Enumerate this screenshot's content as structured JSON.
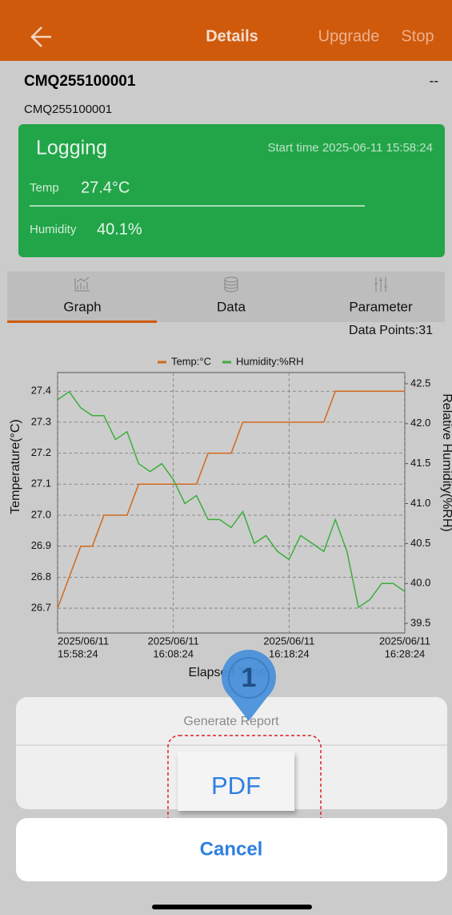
{
  "header": {
    "title": "Details",
    "actions": [
      "Upgrade",
      "Stop"
    ]
  },
  "device": {
    "name": "CMQ255100001",
    "status": "--",
    "id": "CMQ255100001"
  },
  "status_card": {
    "state": "Logging",
    "start_time": "Start time 2025-06-11 15:58:24",
    "readings": [
      {
        "label": "Temp",
        "value": "27.4°C"
      },
      {
        "label": "Humidity",
        "value": "40.1%"
      }
    ]
  },
  "tabs": [
    "Graph",
    "Data",
    "Parameter"
  ],
  "data_points": "Data Points:31",
  "chart_data": {
    "type": "line",
    "xlabel": "Elapsed Time",
    "ylabel": "Temperature(°C)",
    "y2label": "Relative Humidity(%RH)",
    "x": [
      0,
      1,
      2,
      3,
      4,
      5,
      6,
      7,
      8,
      9,
      10,
      11,
      12,
      13,
      14,
      15,
      16,
      17,
      18,
      19,
      20,
      21,
      22,
      23,
      24,
      25,
      26,
      27,
      28,
      29,
      30
    ],
    "xlim": [
      0,
      30
    ],
    "xticks": [
      {
        "value": 0,
        "label": [
          "2025/06/11",
          "15:58:24"
        ]
      },
      {
        "value": 10,
        "label": [
          "2025/06/11",
          "16:08:24"
        ]
      },
      {
        "value": 20,
        "label": [
          "2025/06/11",
          "16:18:24"
        ]
      },
      {
        "value": 30,
        "label": [
          "2025/06/11",
          "16:28:24"
        ]
      }
    ],
    "ylim": [
      26.62,
      27.46
    ],
    "yticks": [
      26.7,
      26.8,
      26.9,
      {
        "value": 27,
        "label": "27.0"
      },
      27.1,
      27.2,
      27.3,
      27.4
    ],
    "y2lim": [
      39.38,
      42.64
    ],
    "y2ticks": [
      39.5,
      {
        "value": 40,
        "label": "40.0"
      },
      40.5,
      {
        "value": 41,
        "label": "41.0"
      },
      41.5,
      {
        "value": 42,
        "label": "42.0"
      },
      42.5
    ],
    "grid": true,
    "legend": "top",
    "series": [
      {
        "name": "Temp:°C",
        "color": "#d2691e",
        "values": [
          26.7,
          26.8,
          26.9,
          26.9,
          27.0,
          27.0,
          27.0,
          27.1,
          27.1,
          27.1,
          27.1,
          27.1,
          27.1,
          27.2,
          27.2,
          27.2,
          27.3,
          27.3,
          27.3,
          27.3,
          27.3,
          27.3,
          27.3,
          27.3,
          27.4,
          27.4,
          27.4,
          27.4,
          27.4,
          27.4,
          27.4
        ]
      },
      {
        "name": "Humidity:%RH",
        "color": "#3cae3c",
        "axis": "y2",
        "values": [
          42.3,
          42.4,
          42.2,
          42.1,
          42.1,
          41.8,
          41.9,
          41.5,
          41.4,
          41.5,
          41.3,
          41.0,
          41.1,
          40.8,
          40.8,
          40.7,
          40.9,
          40.5,
          40.6,
          40.4,
          40.3,
          40.6,
          40.5,
          40.4,
          40.8,
          40.4,
          39.7,
          39.8,
          40.0,
          40.0,
          39.9
        ]
      }
    ]
  },
  "dialog": {
    "title": "Generate Report",
    "options": [
      "PDF"
    ],
    "cancel": "Cancel"
  },
  "annotation": "1"
}
